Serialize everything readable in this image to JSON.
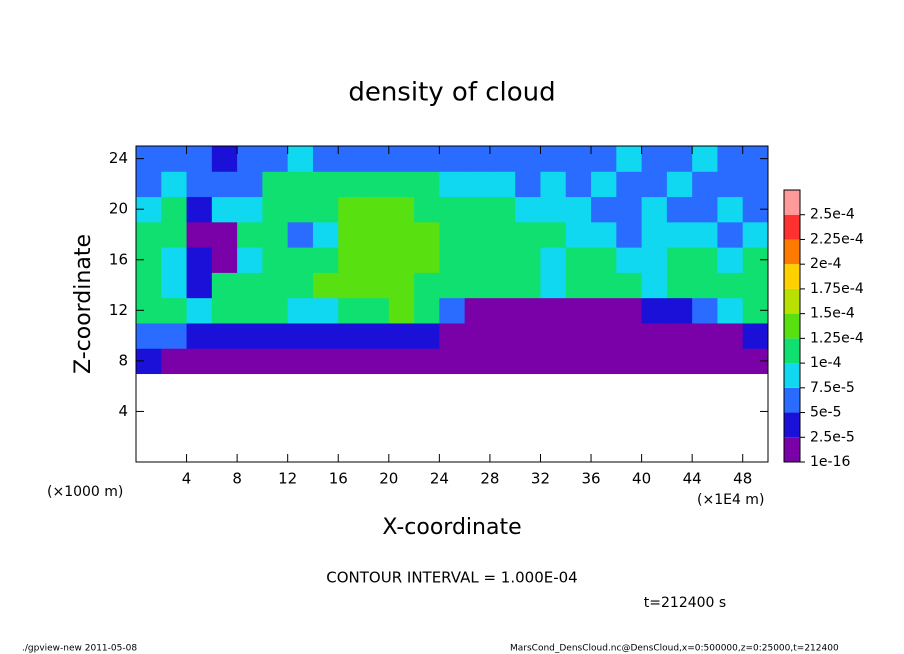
{
  "chart_data": {
    "type": "heatmap",
    "title": "density of cloud",
    "xlabel": "X-coordinate",
    "ylabel": "Z-coordinate",
    "x_unit": "(×1E4 m)",
    "y_unit": "(×1000 m)",
    "xlim": [
      0,
      50
    ],
    "ylim": [
      0,
      25
    ],
    "xticks": [
      4,
      8,
      12,
      16,
      20,
      24,
      28,
      32,
      36,
      40,
      44,
      48
    ],
    "yticks": [
      4,
      8,
      12,
      16,
      20,
      24
    ],
    "x": [
      1,
      3,
      5,
      7,
      9,
      11,
      13,
      15,
      17,
      19,
      21,
      23,
      25,
      27,
      29,
      31,
      33,
      35,
      37,
      39,
      41,
      43,
      45,
      47,
      49
    ],
    "y": [
      8,
      10,
      12,
      14,
      16,
      18,
      20,
      22,
      24
    ],
    "z": [
      [
        3e-05,
        2e-05,
        1.5e-05,
        1.5e-05,
        1e-05,
        1.5e-05,
        1.5e-05,
        2e-05,
        1.5e-05,
        1.5e-05,
        1e-05,
        1.5e-05,
        1.5e-05,
        1e-05,
        1e-05,
        1.5e-05,
        1e-05,
        1e-05,
        1.5e-05,
        1e-05,
        1e-05,
        1.5e-05,
        1.5e-05,
        1e-05,
        2e-05
      ],
      [
        6e-05,
        5e-05,
        4e-05,
        3e-05,
        3e-05,
        4e-05,
        3e-05,
        4e-05,
        3e-05,
        3e-05,
        4e-05,
        3e-05,
        1.5e-05,
        1.5e-05,
        1.5e-05,
        1.5e-05,
        1.5e-05,
        1.5e-05,
        1e-05,
        1e-05,
        1.5e-05,
        1.5e-05,
        1e-05,
        1.5e-05,
        4e-05
      ],
      [
        0.00011,
        0.0001,
        9e-05,
        0.00011,
        0.00011,
        0.0001,
        9e-05,
        8e-05,
        0.00011,
        0.00012,
        0.00013,
        0.00012,
        6e-05,
        2e-05,
        2e-05,
        2e-05,
        1.5e-05,
        1.5e-05,
        2e-05,
        2e-05,
        3e-05,
        4e-05,
        6e-05,
        8e-05,
        0.0001
      ],
      [
        0.00011,
        8e-05,
        4e-05,
        0.0001,
        0.00011,
        0.00011,
        0.00012,
        0.00013,
        0.00013,
        0.000135,
        0.00013,
        0.00012,
        0.00011,
        0.0001,
        0.00011,
        0.0001,
        9e-05,
        0.0001,
        0.00011,
        0.00011,
        9e-05,
        0.0001,
        0.00011,
        0.00011,
        0.00011
      ],
      [
        0.00011,
        9e-05,
        3e-05,
        2e-05,
        8e-05,
        0.0001,
        0.00011,
        0.0001,
        0.00013,
        0.000135,
        0.000135,
        0.00013,
        0.00012,
        0.00011,
        0.0001,
        0.00011,
        9e-05,
        0.0001,
        0.0001,
        9e-05,
        8e-05,
        0.0001,
        0.0001,
        9e-05,
        0.00011
      ],
      [
        0.00011,
        0.0001,
        2e-05,
        2e-05,
        0.0001,
        0.0001,
        5e-05,
        9e-05,
        0.00013,
        0.000135,
        0.000135,
        0.00013,
        0.00012,
        0.00011,
        0.00011,
        0.0001,
        0.0001,
        9e-05,
        8e-05,
        7e-05,
        9e-05,
        8e-05,
        8e-05,
        7e-05,
        8e-05
      ],
      [
        8e-05,
        0.00011,
        4e-05,
        8e-05,
        9e-05,
        0.00011,
        0.0001,
        0.00011,
        0.00013,
        0.00013,
        0.00013,
        0.00012,
        0.00011,
        0.00011,
        0.00011,
        9e-05,
        8e-05,
        8e-05,
        7e-05,
        7e-05,
        8e-05,
        7e-05,
        7e-05,
        8e-05,
        7e-05
      ],
      [
        7e-05,
        8e-05,
        7e-05,
        6e-05,
        7e-05,
        0.0001,
        0.00011,
        0.00011,
        0.00012,
        0.00012,
        0.00012,
        0.00011,
        9e-05,
        8e-05,
        8e-05,
        7e-05,
        8e-05,
        7e-05,
        8e-05,
        6e-05,
        7e-05,
        8e-05,
        7e-05,
        6e-05,
        7e-05
      ],
      [
        6e-05,
        7e-05,
        5e-05,
        3e-05,
        6e-05,
        7e-05,
        8e-05,
        6e-05,
        7e-05,
        6e-05,
        6e-05,
        7e-05,
        6e-05,
        7e-05,
        6e-05,
        6e-05,
        7e-05,
        6e-05,
        7e-05,
        8e-05,
        7e-05,
        6e-05,
        8e-05,
        7e-05,
        6e-05
      ]
    ],
    "levels": [
      {
        "value": 1e-16,
        "label": "1e-16"
      },
      {
        "value": 2.5e-05,
        "label": "2.5e-5"
      },
      {
        "value": 5e-05,
        "label": "5e-5"
      },
      {
        "value": 7.5e-05,
        "label": "7.5e-5"
      },
      {
        "value": 0.0001,
        "label": "1e-4"
      },
      {
        "value": 0.000125,
        "label": "1.25e-4"
      },
      {
        "value": 0.00015,
        "label": "1.5e-4"
      },
      {
        "value": 0.000175,
        "label": "1.75e-4"
      },
      {
        "value": 0.0002,
        "label": "2e-4"
      },
      {
        "value": 0.000225,
        "label": "2.25e-4"
      },
      {
        "value": 0.00025,
        "label": "2.5e-4"
      }
    ],
    "colors": [
      "#7a00a8",
      "#1a10d8",
      "#2a6cff",
      "#10d8f0",
      "#10e070",
      "#58e010",
      "#b8e000",
      "#ffd000",
      "#ff7a00",
      "#ff3030"
    ],
    "over_color": "#ff9a9a",
    "annotations": [
      "CONTOUR INTERVAL = 1.000E-04",
      "t=212400 s"
    ],
    "footer_left": "./gpview-new  2011-05-08",
    "footer_right": "MarsCond_DensCloud.nc@DensCloud,x=0:500000,z=0:25000,t=212400"
  }
}
